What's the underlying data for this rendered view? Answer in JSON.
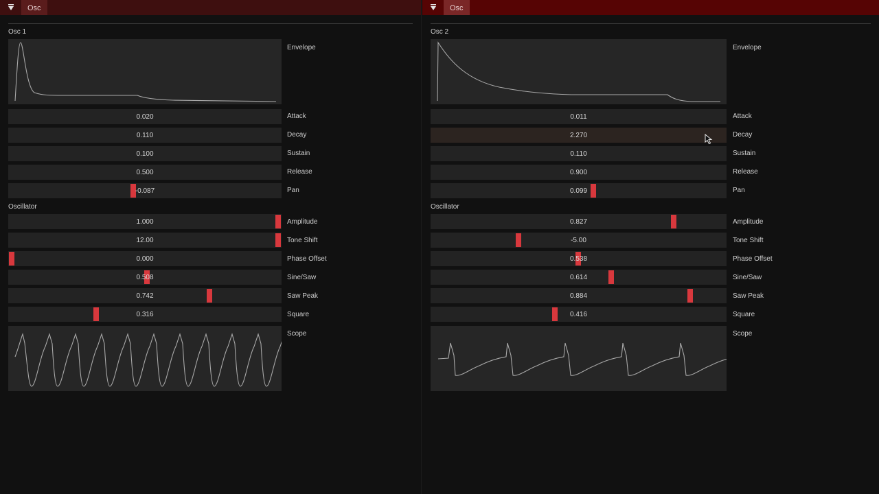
{
  "left_panel": {
    "tab_label": "Osc",
    "section_title": "Osc 1",
    "envelope_label": "Envelope",
    "sliders": [
      {
        "label": "Attack",
        "value": "0.020"
      },
      {
        "label": "Decay",
        "value": "0.110"
      },
      {
        "label": "Sustain",
        "value": "0.100"
      },
      {
        "label": "Release",
        "value": "0.500"
      },
      {
        "label": "Pan",
        "value": "-0.087"
      }
    ],
    "oscillator_title": "Oscillator",
    "osc_sliders": [
      {
        "label": "Amplitude",
        "value": "1.000"
      },
      {
        "label": "Tone Shift",
        "value": "12.00"
      },
      {
        "label": "Phase Offset",
        "value": "0.000"
      },
      {
        "label": "Sine/Saw",
        "value": "0.508"
      },
      {
        "label": "Saw Peak",
        "value": "0.742"
      },
      {
        "label": "Square",
        "value": "0.316"
      }
    ],
    "scope_label": "Scope"
  },
  "right_panel": {
    "tab_label": "Osc",
    "section_title": "Osc 2",
    "envelope_label": "Envelope",
    "sliders": [
      {
        "label": "Attack",
        "value": "0.011"
      },
      {
        "label": "Decay",
        "value": "2.270"
      },
      {
        "label": "Sustain",
        "value": "0.110"
      },
      {
        "label": "Release",
        "value": "0.900"
      },
      {
        "label": "Pan",
        "value": "0.099"
      }
    ],
    "oscillator_title": "Oscillator",
    "osc_sliders": [
      {
        "label": "Amplitude",
        "value": "0.827"
      },
      {
        "label": "Tone Shift",
        "value": "-5.00"
      },
      {
        "label": "Phase Offset",
        "value": "0.538"
      },
      {
        "label": "Sine/Saw",
        "value": "0.614"
      },
      {
        "label": "Saw Peak",
        "value": "0.884"
      },
      {
        "label": "Square",
        "value": "0.416"
      }
    ],
    "scope_label": "Scope"
  },
  "icons": {
    "collapse": "triangle-down-icon",
    "cursor": "mouse-pointer-icon"
  },
  "colors": {
    "accent": "#d8383d",
    "header_active": "#560404",
    "header_inactive": "#3e0f0f"
  }
}
